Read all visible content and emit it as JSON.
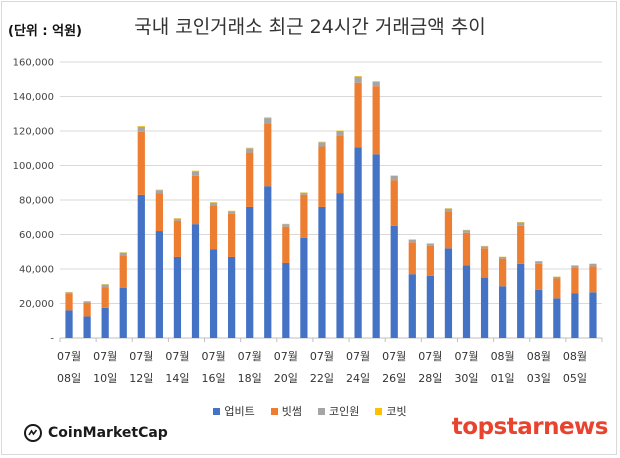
{
  "header": {
    "unit_label": "(단위 : 억원)",
    "title": "국내 코인거래소 최근 24시간 거래금액 추이"
  },
  "chart_data": {
    "type": "bar",
    "stacked": true,
    "title": "국내 코인거래소 최근 24시간 거래금액 추이",
    "unit": "(단위 : 억원)",
    "ylim": [
      0,
      160000
    ],
    "y_ticks": [
      "-",
      "20,000",
      "40,000",
      "60,000",
      "80,000",
      "100,000",
      "120,000",
      "140,000",
      "160,000"
    ],
    "y_tick_values": [
      0,
      20000,
      40000,
      60000,
      80000,
      100000,
      120000,
      140000,
      160000
    ],
    "grid": true,
    "legend_position": "bottom",
    "x_labels": [
      [
        "07월",
        "08일"
      ],
      [
        "07월",
        "10일"
      ],
      [
        "07월",
        "12일"
      ],
      [
        "07월",
        "14일"
      ],
      [
        "07월",
        "16일"
      ],
      [
        "07월",
        "18일"
      ],
      [
        "07월",
        "20일"
      ],
      [
        "07월",
        "22일"
      ],
      [
        "07월",
        "24일"
      ],
      [
        "07월",
        "26일"
      ],
      [
        "07월",
        "28일"
      ],
      [
        "07월",
        "30일"
      ],
      [
        "08월",
        "01일"
      ],
      [
        "08월",
        "03일"
      ],
      [
        "08월",
        "05일"
      ]
    ],
    "categories": [
      "07/08",
      "07/09",
      "07/10",
      "07/11",
      "07/12",
      "07/13",
      "07/14",
      "07/15",
      "07/16",
      "07/17",
      "07/18",
      "07/19",
      "07/20",
      "07/21",
      "07/22",
      "07/23",
      "07/24",
      "07/25",
      "07/26",
      "07/27",
      "07/28",
      "07/29",
      "07/30",
      "07/31",
      "08/01",
      "08/02",
      "08/03",
      "08/04",
      "08/05",
      "08/06"
    ],
    "series": [
      {
        "name": "업비트",
        "color": "#4472c4",
        "values": [
          16000,
          12500,
          17500,
          29000,
          83000,
          62000,
          47000,
          66000,
          51500,
          47000,
          76000,
          88000,
          43500,
          58000,
          76000,
          84000,
          110500,
          106500,
          65000,
          37000,
          36000,
          52000,
          42000,
          35000,
          30000,
          43000,
          28000,
          23000,
          26000,
          26500
        ]
      },
      {
        "name": "빗썸",
        "color": "#ed7d31",
        "values": [
          9500,
          8000,
          12000,
          19000,
          36500,
          22000,
          21000,
          28000,
          25500,
          25000,
          31500,
          36500,
          21000,
          25000,
          35000,
          33500,
          37500,
          39500,
          26500,
          18500,
          17500,
          21500,
          19000,
          17000,
          16000,
          22000,
          15000,
          11500,
          15000,
          15000
        ]
      },
      {
        "name": "코인원",
        "color": "#a5a5a5",
        "values": [
          1000,
          700,
          1500,
          1500,
          3000,
          1700,
          1200,
          2700,
          1500,
          1500,
          2500,
          3000,
          1500,
          1200,
          2500,
          2500,
          3500,
          2500,
          2500,
          1500,
          1200,
          1500,
          1500,
          1200,
          1000,
          2000,
          1500,
          1000,
          1000,
          1500
        ]
      },
      {
        "name": "코빗",
        "color": "#ffc000",
        "values": [
          200,
          150,
          200,
          200,
          400,
          300,
          250,
          300,
          250,
          250,
          300,
          400,
          200,
          250,
          300,
          300,
          400,
          400,
          250,
          200,
          200,
          250,
          200,
          200,
          150,
          250,
          150,
          150,
          150,
          150
        ]
      }
    ]
  },
  "logos": {
    "left_text": "CoinMarketCap",
    "right_text": "topstarnews"
  },
  "colors": {
    "grid": "#d9d9d9",
    "axis": "#bfbfbf",
    "brand_red": "#e8432f"
  }
}
